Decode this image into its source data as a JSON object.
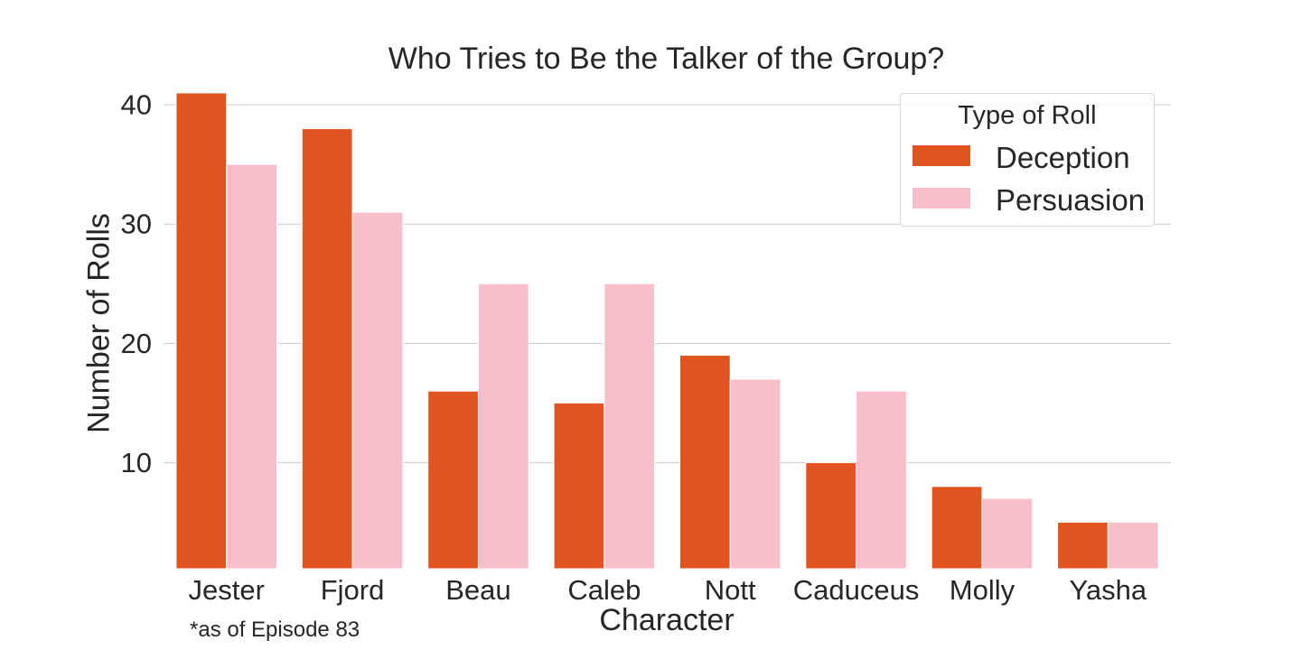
{
  "chart_data": {
    "type": "bar",
    "title": "Who Tries to Be the Talker of the Group?",
    "xlabel": "Character",
    "ylabel": "Number of Rolls",
    "categories": [
      "Jester",
      "Fjord",
      "Beau",
      "Caleb",
      "Nott",
      "Caduceus",
      "Molly",
      "Yasha"
    ],
    "series": [
      {
        "name": "Deception",
        "color": "#e1541f",
        "values": [
          41,
          38,
          16,
          15,
          19,
          10,
          8,
          5
        ]
      },
      {
        "name": "Persuasion",
        "color": "#f7bfca",
        "values": [
          35,
          31,
          25,
          25,
          17,
          16,
          7,
          5
        ]
      }
    ],
    "ylim": [
      1.1,
      41.6
    ],
    "yticks": [
      10,
      20,
      30,
      40
    ],
    "grid": true,
    "legend": {
      "title": "Type of Roll",
      "position": "top-right"
    },
    "annotation": "*as of Episode 83"
  }
}
